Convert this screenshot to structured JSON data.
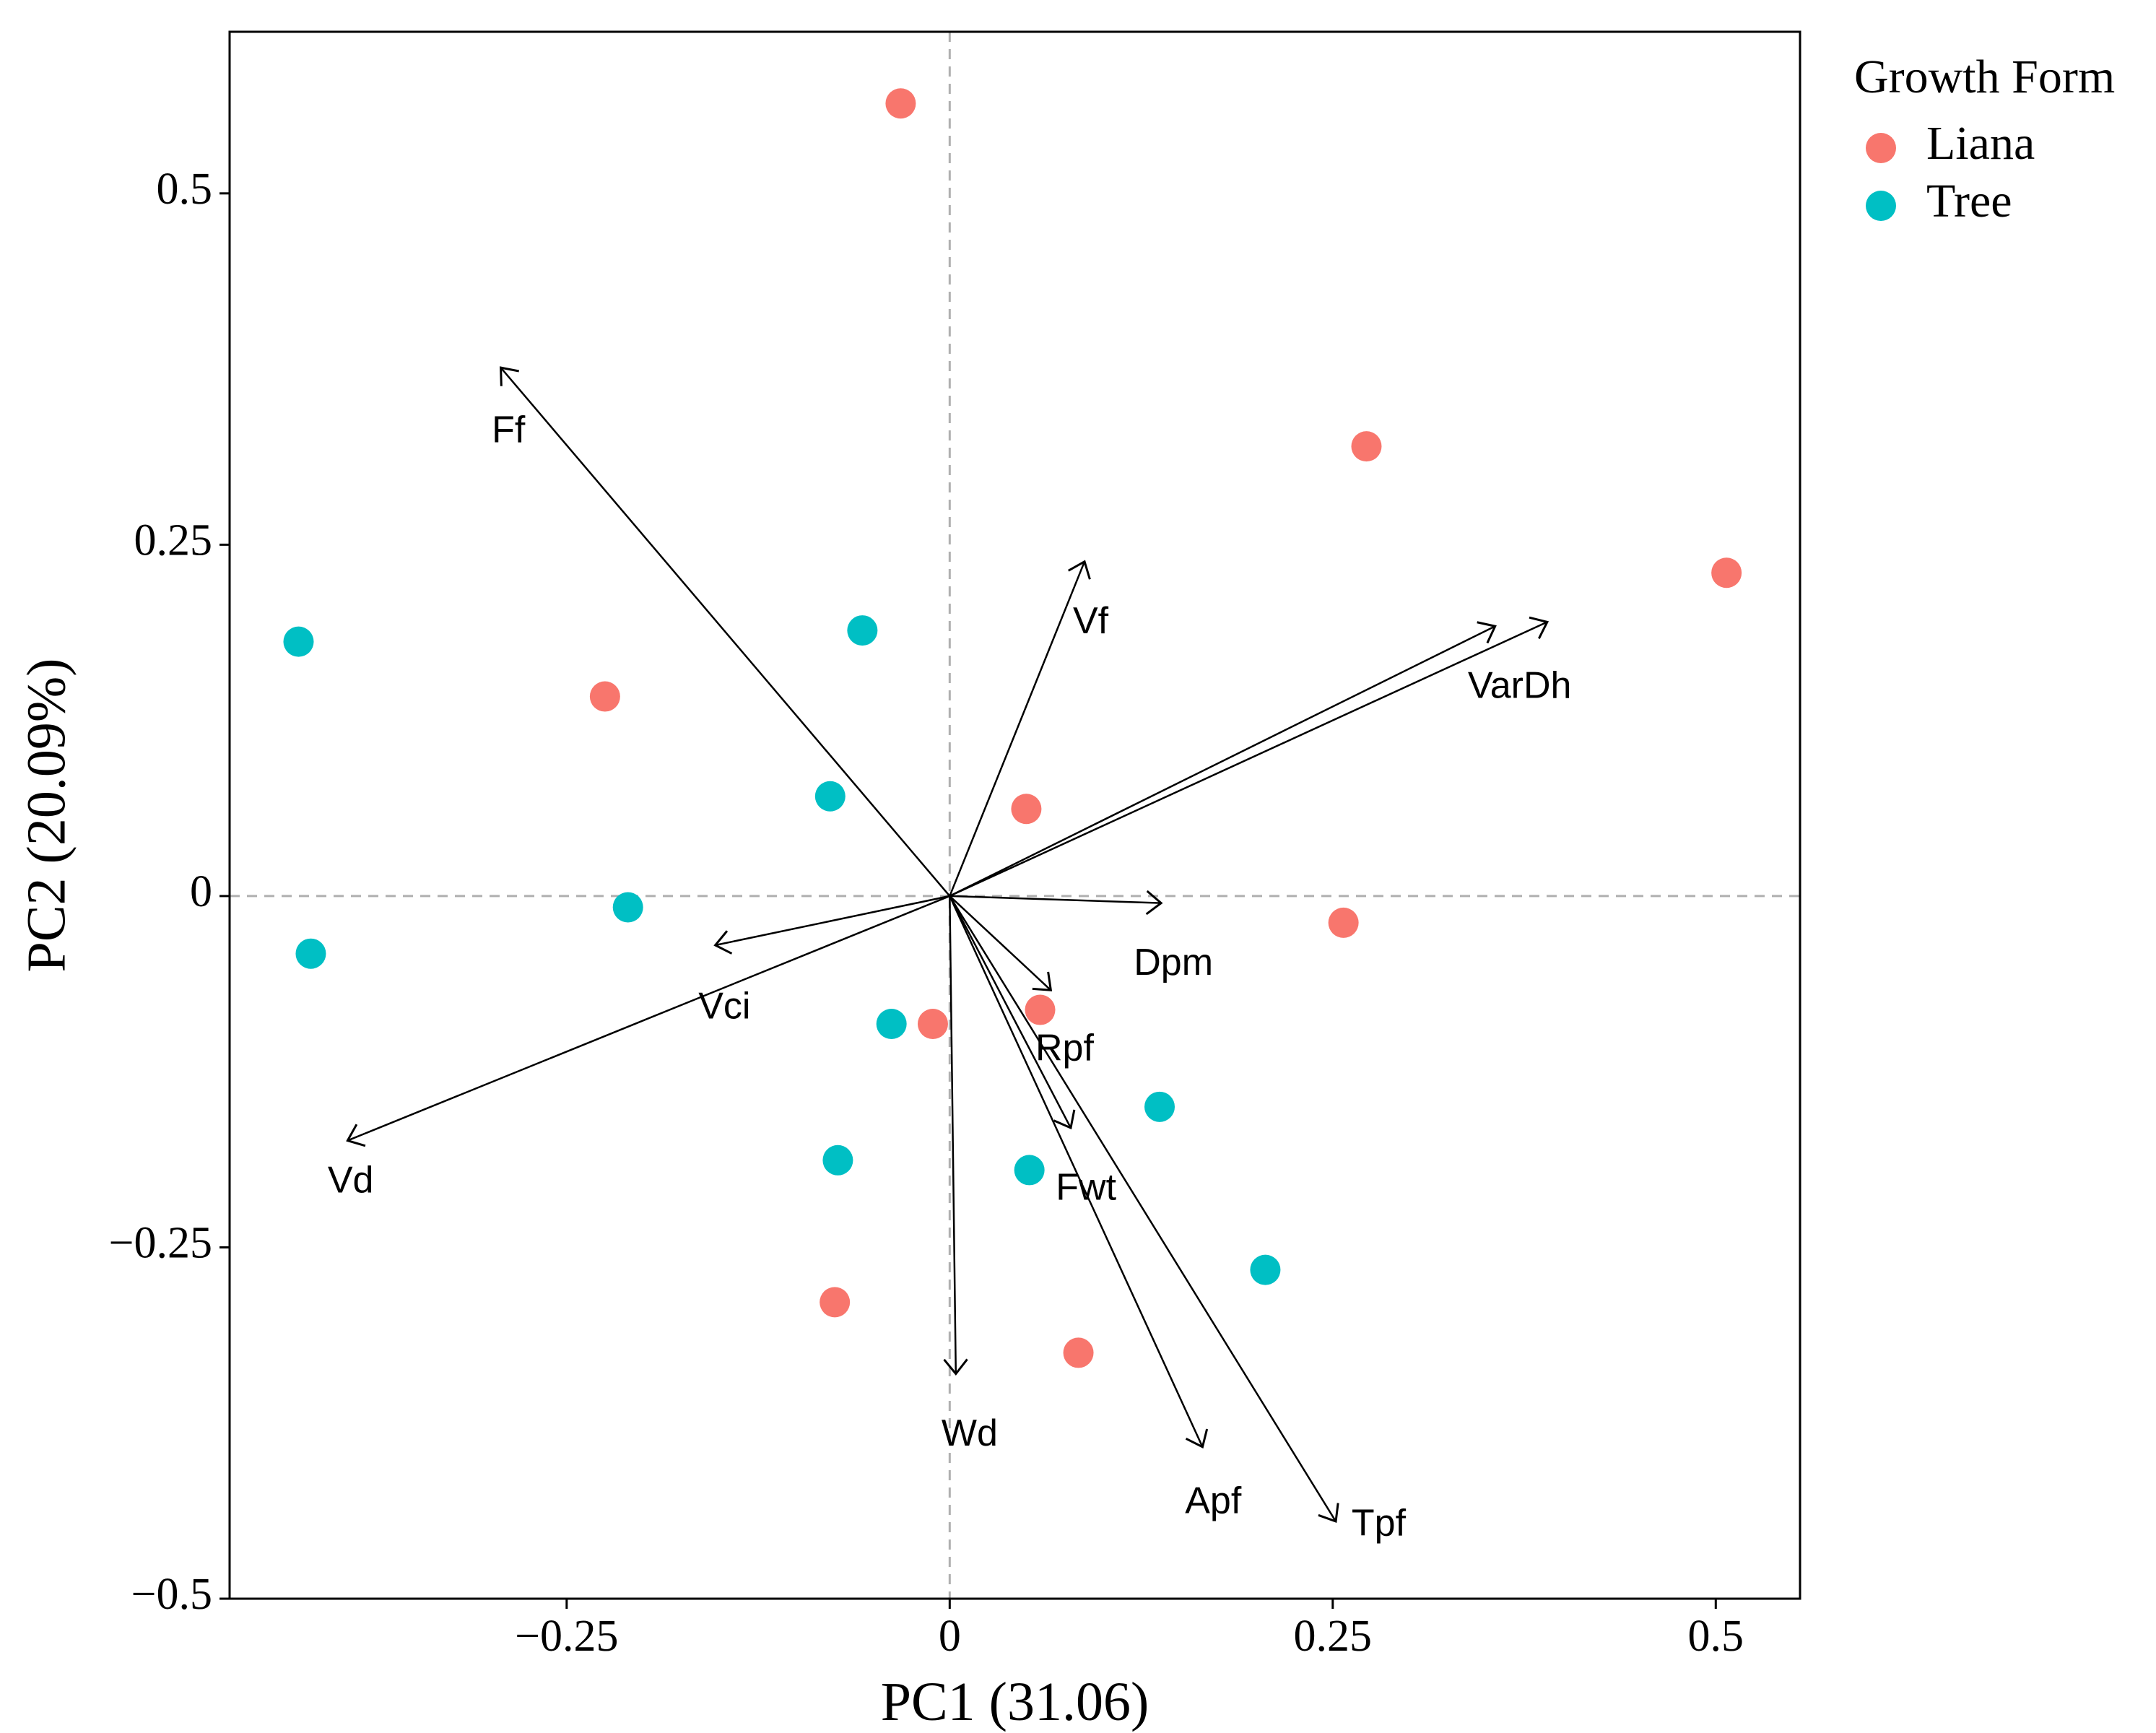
{
  "chart_data": {
    "type": "scatter",
    "subtype": "pca-biplot",
    "xlabel": "PC1 (31.06)",
    "ylabel": "PC2 (20.09%)",
    "xlim": [
      -0.47,
      0.555
    ],
    "ylim": [
      -0.5,
      0.615
    ],
    "x_ticks": [
      {
        "value": -0.25,
        "label": "−0.25"
      },
      {
        "value": 0,
        "label": "0"
      },
      {
        "value": 0.25,
        "label": "0.25"
      },
      {
        "value": 0.5,
        "label": "0.5"
      }
    ],
    "y_ticks": [
      {
        "value": -0.5,
        "label": "−0.5"
      },
      {
        "value": -0.25,
        "label": "−0.25"
      },
      {
        "value": 0,
        "label": "0"
      },
      {
        "value": 0.25,
        "label": "0.25"
      },
      {
        "value": 0.5,
        "label": "0.5"
      }
    ],
    "legend": {
      "title": "Growth Form",
      "position": "top-right",
      "entries": [
        {
          "name": "Liana",
          "color": "#F8766D"
        },
        {
          "name": "Tree",
          "color": "#00BFC4"
        }
      ]
    },
    "series": [
      {
        "name": "Liana",
        "color": "#F8766D",
        "points": [
          {
            "x": -0.032,
            "y": 0.564
          },
          {
            "x": 0.272,
            "y": 0.32
          },
          {
            "x": 0.507,
            "y": 0.23
          },
          {
            "x": -0.225,
            "y": 0.142
          },
          {
            "x": 0.05,
            "y": 0.062
          },
          {
            "x": 0.257,
            "y": -0.019
          },
          {
            "x": 0.059,
            "y": -0.081
          },
          {
            "x": -0.011,
            "y": -0.091
          },
          {
            "x": -0.075,
            "y": -0.289
          },
          {
            "x": 0.084,
            "y": -0.325
          }
        ]
      },
      {
        "name": "Tree",
        "color": "#00BFC4",
        "points": [
          {
            "x": -0.425,
            "y": 0.181
          },
          {
            "x": -0.057,
            "y": 0.189
          },
          {
            "x": -0.078,
            "y": 0.071
          },
          {
            "x": -0.21,
            "y": -0.008
          },
          {
            "x": -0.417,
            "y": -0.041
          },
          {
            "x": -0.038,
            "y": -0.091
          },
          {
            "x": 0.137,
            "y": -0.15
          },
          {
            "x": -0.073,
            "y": -0.188
          },
          {
            "x": 0.052,
            "y": -0.195
          },
          {
            "x": 0.206,
            "y": -0.266
          }
        ]
      }
    ],
    "vectors": [
      {
        "name": "Ff",
        "x": -0.293,
        "y": 0.376
      },
      {
        "name": "Vf",
        "x": 0.088,
        "y": 0.238
      },
      {
        "name": "VarDh",
        "x": 0.39,
        "y": 0.195
      },
      {
        "name": "VarDh",
        "x": 0.356,
        "y": 0.192
      },
      {
        "name": "Dpm",
        "x": 0.138,
        "y": -0.005
      },
      {
        "name": "Vci",
        "x": -0.153,
        "y": -0.035
      },
      {
        "name": "Vd",
        "x": -0.393,
        "y": -0.174
      },
      {
        "name": "Rpf",
        "x": 0.066,
        "y": -0.067
      },
      {
        "name": "Fwt",
        "x": 0.079,
        "y": -0.165
      },
      {
        "name": "Wd",
        "x": 0.004,
        "y": -0.34
      },
      {
        "name": "Apf",
        "x": 0.165,
        "y": -0.392
      },
      {
        "name": "Tpf",
        "x": 0.252,
        "y": -0.445
      }
    ],
    "vector_labels": [
      {
        "text": "Ff",
        "x": -0.288,
        "y": 0.33
      },
      {
        "text": "Vf",
        "x": 0.092,
        "y": 0.194
      },
      {
        "text": "VarDh",
        "x": 0.372,
        "y": 0.148
      },
      {
        "text": "Dpm",
        "x": 0.146,
        "y": -0.049
      },
      {
        "text": "Vci",
        "x": -0.147,
        "y": -0.08
      },
      {
        "text": "Vd",
        "x": -0.391,
        "y": -0.204
      },
      {
        "text": "Rpf",
        "x": 0.075,
        "y": -0.11
      },
      {
        "text": "Fwt",
        "x": 0.089,
        "y": -0.209
      },
      {
        "text": "Wd",
        "x": 0.013,
        "y": -0.384
      },
      {
        "text": "Apf",
        "x": 0.172,
        "y": -0.432
      },
      {
        "text": "Tpf",
        "x": 0.28,
        "y": -0.448
      }
    ],
    "reference_lines": {
      "x": 0,
      "y": 0,
      "style": "dashed"
    }
  }
}
